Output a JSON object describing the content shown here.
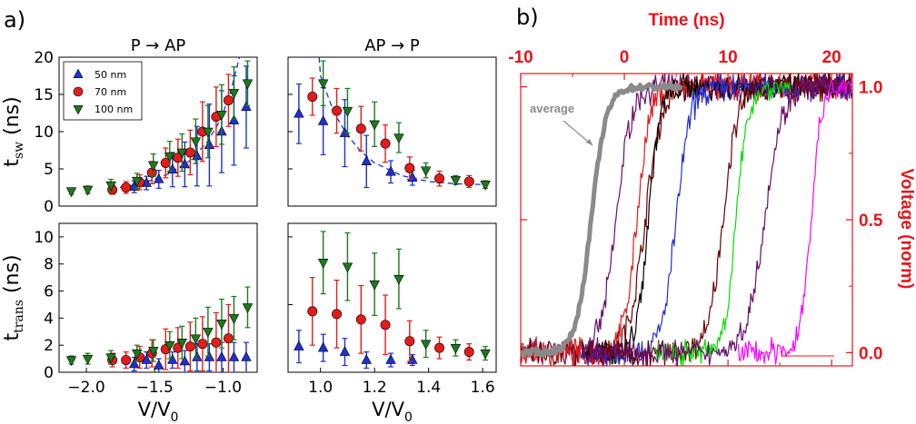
{
  "panel_labels": {
    "a": "a)",
    "b": "b)"
  },
  "colors": {
    "blue": "#1f2fd6",
    "red": "#e51b1b",
    "green": "#1b7a1b",
    "accent_red": "#e8141b",
    "gray": "#8a8a8a"
  },
  "chart_data": [
    {
      "id": "top-left",
      "type": "scatter",
      "title": "P → AP",
      "ylabel_main": "t",
      "ylabel_sub": "sw",
      "ylabel_unit": "(ns)",
      "xlim": [
        -2.2,
        -0.75
      ],
      "ylim": [
        0,
        20
      ],
      "yticks": [
        "0",
        "5",
        "10",
        "15",
        "20"
      ],
      "legend": {
        "placement": "top-left",
        "entries": [
          "50 nm",
          "70 nm",
          "100 nm"
        ]
      },
      "series": [
        {
          "name": "50 nm",
          "marker": "triangle-up",
          "color": "#1f2fd6",
          "x": [
            -1.65,
            -1.56,
            -1.47,
            -1.37,
            -1.28,
            -1.19,
            -1.1,
            -1.01,
            -0.92,
            -0.83
          ],
          "y": [
            2.6,
            3.1,
            3.6,
            4.9,
            5.6,
            6.7,
            8.2,
            10.0,
            11.5,
            13.3
          ],
          "err": [
            0.8,
            0.9,
            1.2,
            2.3,
            3.0,
            4.0,
            5.5,
            5.5,
            6.0,
            5.5
          ]
        },
        {
          "name": "70 nm",
          "marker": "circle",
          "color": "#e51b1b",
          "x": [
            -1.81,
            -1.71,
            -1.61,
            -1.52,
            -1.42,
            -1.33,
            -1.24,
            -1.15,
            -1.05,
            -0.96
          ],
          "y": [
            2.2,
            2.5,
            3.2,
            4.5,
            5.8,
            6.5,
            7.2,
            10.0,
            12.0,
            14.2
          ],
          "err": [
            0.6,
            0.8,
            1.0,
            1.5,
            2.0,
            2.5,
            3.0,
            4.0,
            4.0,
            3.5
          ]
        },
        {
          "name": "100 nm",
          "marker": "triangle-down",
          "color": "#1b7a1b",
          "x": [
            -2.11,
            -1.99,
            -1.82,
            -1.63,
            -1.51,
            -1.39,
            -1.3,
            -1.2,
            -1.11,
            -1.01,
            -0.92,
            -0.82
          ],
          "y": [
            2.0,
            2.2,
            2.8,
            3.4,
            5.5,
            6.7,
            7.2,
            8.7,
            10.0,
            12.3,
            15.2,
            16.5
          ],
          "err": [
            0.4,
            0.5,
            0.8,
            1.0,
            1.5,
            2.0,
            2.5,
            3.0,
            3.5,
            4.0,
            3.5,
            3.0
          ]
        }
      ],
      "fit": {
        "x": [
          -1.82,
          -1.6,
          -1.4,
          -1.25,
          -1.12,
          -1.02,
          -0.95,
          -0.9,
          -0.88
        ],
        "y": [
          2.3,
          3.0,
          4.3,
          6.0,
          8.5,
          11.5,
          15.0,
          18.5,
          20.0
        ]
      }
    },
    {
      "id": "top-right",
      "type": "scatter",
      "title": "AP → P",
      "xlim": [
        0.88,
        1.65
      ],
      "ylim": [
        0,
        20
      ],
      "series": [
        {
          "name": "50 nm",
          "marker": "triangle-up",
          "color": "#1f2fd6",
          "x": [
            0.92,
            1.01,
            1.09,
            1.17,
            1.26,
            1.34
          ],
          "y": [
            12.4,
            11.4,
            9.8,
            6.0,
            4.6,
            3.8
          ],
          "err": [
            4.0,
            4.5,
            4.5,
            3.5,
            1.5,
            1.0
          ]
        },
        {
          "name": "70 nm",
          "marker": "circle",
          "color": "#e51b1b",
          "x": [
            0.97,
            1.06,
            1.15,
            1.24,
            1.33,
            1.44,
            1.55
          ],
          "y": [
            14.7,
            12.8,
            10.4,
            8.4,
            5.1,
            3.7,
            3.3
          ],
          "err": [
            2.5,
            3.0,
            3.0,
            2.5,
            1.5,
            1.0,
            0.8
          ]
        },
        {
          "name": "100 nm",
          "marker": "triangle-down",
          "color": "#1b7a1b",
          "x": [
            1.01,
            1.1,
            1.2,
            1.29,
            1.39,
            1.5,
            1.61
          ],
          "y": [
            16.5,
            12.8,
            11.0,
            9.2,
            4.8,
            3.5,
            2.9
          ],
          "err": [
            3.0,
            3.0,
            3.0,
            2.0,
            1.0,
            0.6,
            0.5
          ]
        }
      ],
      "fit": {
        "x": [
          0.995,
          1.0,
          1.05,
          1.1,
          1.15,
          1.2,
          1.3,
          1.4,
          1.5,
          1.6
        ],
        "y": [
          20.0,
          17.5,
          12.5,
          9.5,
          7.3,
          5.8,
          4.1,
          3.3,
          3.0,
          2.9
        ]
      }
    },
    {
      "id": "bottom-left",
      "type": "scatter",
      "ylabel_main": "t",
      "ylabel_sub": "trans",
      "ylabel_unit": "(ns)",
      "xlabel_main": "V/V",
      "xlabel_sub": "0",
      "xlim": [
        -2.2,
        -0.75
      ],
      "ylim": [
        0,
        11
      ],
      "yticks": [
        "0",
        "2",
        "4",
        "6",
        "8",
        "10"
      ],
      "xticks": [
        "−2.0",
        "−1.5",
        "−1.0"
      ],
      "xtick_values": [
        -2.0,
        -1.5,
        -1.0
      ],
      "series": [
        {
          "name": "50 nm",
          "marker": "triangle-up",
          "color": "#1f2fd6",
          "x": [
            -1.65,
            -1.56,
            -1.47,
            -1.37,
            -1.28,
            -1.19,
            -1.1,
            -1.01,
            -0.92,
            -0.83
          ],
          "y": [
            0.6,
            0.9,
            0.5,
            0.9,
            0.8,
            1.1,
            1.1,
            1.1,
            1.1,
            1.1
          ],
          "err": [
            0.5,
            0.6,
            0.5,
            0.6,
            0.8,
            1.0,
            1.0,
            1.1,
            1.1,
            1.1
          ]
        },
        {
          "name": "70 nm",
          "marker": "circle",
          "color": "#e51b1b",
          "x": [
            -1.81,
            -1.71,
            -1.61,
            -1.52,
            -1.42,
            -1.33,
            -1.24,
            -1.15,
            -1.05,
            -0.96
          ],
          "y": [
            0.9,
            0.9,
            1.1,
            1.4,
            1.7,
            1.8,
            1.9,
            2.1,
            2.2,
            2.5
          ],
          "err": [
            0.5,
            0.6,
            0.8,
            1.0,
            1.5,
            1.5,
            1.8,
            2.0,
            2.2,
            2.5
          ]
        },
        {
          "name": "100 nm",
          "marker": "triangle-down",
          "color": "#1b7a1b",
          "x": [
            -2.11,
            -1.99,
            -1.82,
            -1.63,
            -1.51,
            -1.39,
            -1.3,
            -1.2,
            -1.11,
            -1.01,
            -0.92,
            -0.82
          ],
          "y": [
            0.9,
            1.0,
            1.1,
            1.4,
            1.6,
            2.0,
            2.2,
            2.5,
            3.0,
            3.6,
            4.0,
            4.8
          ],
          "err": [
            0.3,
            0.4,
            0.5,
            0.6,
            0.8,
            1.0,
            1.2,
            1.5,
            1.8,
            1.8,
            1.6,
            1.5
          ]
        }
      ]
    },
    {
      "id": "bottom-right",
      "type": "scatter",
      "xlabel_main": "V/V",
      "xlabel_sub": "0",
      "xlim": [
        0.88,
        1.65
      ],
      "ylim": [
        0,
        11
      ],
      "xticks": [
        "1.0",
        "1.2",
        "1.4",
        "1.6"
      ],
      "xtick_values": [
        1.0,
        1.2,
        1.4,
        1.6
      ],
      "series": [
        {
          "name": "50 nm",
          "marker": "triangle-up",
          "color": "#1f2fd6",
          "x": [
            0.92,
            1.01,
            1.09,
            1.17,
            1.26,
            1.34
          ],
          "y": [
            1.9,
            1.8,
            1.5,
            0.9,
            0.9,
            0.9
          ],
          "err": [
            1.2,
            1.0,
            1.0,
            0.6,
            0.5,
            0.4
          ]
        },
        {
          "name": "70 nm",
          "marker": "circle",
          "color": "#e51b1b",
          "x": [
            0.97,
            1.06,
            1.15,
            1.24,
            1.33,
            1.44,
            1.55
          ],
          "y": [
            4.5,
            4.3,
            3.9,
            3.5,
            2.3,
            1.8,
            1.5
          ],
          "err": [
            2.5,
            2.5,
            2.5,
            2.2,
            1.5,
            0.8,
            0.6
          ]
        },
        {
          "name": "100 nm",
          "marker": "triangle-down",
          "color": "#1b7a1b",
          "x": [
            1.01,
            1.1,
            1.2,
            1.29,
            1.39,
            1.5,
            1.61
          ],
          "y": [
            8.1,
            7.8,
            6.5,
            6.9,
            2.1,
            1.8,
            1.4
          ],
          "err": [
            2.3,
            2.5,
            2.3,
            2.2,
            1.0,
            0.6,
            0.5
          ]
        }
      ]
    },
    {
      "id": "panel-b",
      "type": "line",
      "xlabel": "Time (ns)",
      "ylabel": "Voltage (norm)",
      "xlim": [
        -10,
        22
      ],
      "ylim": [
        -0.05,
        1.05
      ],
      "xticks": [
        "-10",
        "0",
        "10",
        "20"
      ],
      "xtick_values": [
        -10,
        0,
        10,
        20
      ],
      "yticks": [
        "0.0",
        "0.5",
        "1.0"
      ],
      "ytick_values": [
        0.0,
        0.5,
        1.0
      ],
      "annotation": "average",
      "traces": [
        {
          "color": "#8a8a8a",
          "t0": -10,
          "t1": 5.5,
          "mid": -3.2,
          "width": 3.2,
          "noise": 0.012,
          "thick": true
        },
        {
          "color": "#6a0f6a",
          "t0": -10,
          "t1": 22,
          "mid": -0.8,
          "width": 3.2,
          "noise": 0.04
        },
        {
          "color": "#6b0000",
          "t0": -10,
          "t1": 22,
          "mid": 2.0,
          "width": 3.5,
          "noise": 0.04
        },
        {
          "color": "#e51b1b",
          "t0": -10,
          "t1": 22,
          "mid": 1.2,
          "width": 2.8,
          "noise": 0.04
        },
        {
          "color": "#000000",
          "t0": -4,
          "t1": 22,
          "mid": 2.3,
          "width": 2.5,
          "noise": 0.04
        },
        {
          "color": "#1f2fd6",
          "t0": -4,
          "t1": 22,
          "mid": 5.0,
          "width": 3.0,
          "noise": 0.04
        },
        {
          "color": "#6b0000",
          "t0": -4,
          "t1": 22,
          "mid": 9.5,
          "width": 3.2,
          "noise": 0.04
        },
        {
          "color": "#00e000",
          "t0": 3,
          "t1": 16,
          "mid": 10.8,
          "width": 2.5,
          "noise": 0.04
        },
        {
          "color": "#6a0f6a",
          "t0": -4,
          "t1": 22,
          "mid": 13.5,
          "width": 3.8,
          "noise": 0.04
        },
        {
          "color": "#ff00ff",
          "t0": 11,
          "t1": 22,
          "mid": 18.0,
          "width": 2.2,
          "noise": 0.04
        }
      ]
    }
  ]
}
